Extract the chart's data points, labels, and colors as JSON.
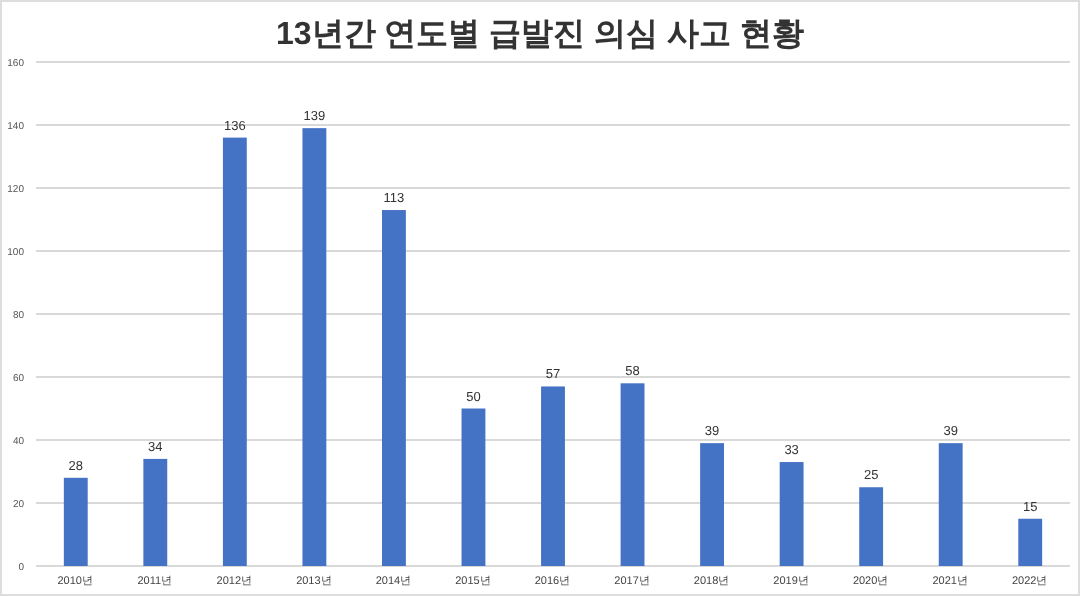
{
  "chart_data": {
    "type": "bar",
    "title": "13년간 연도별 급발진 의심 사고 현황",
    "categories": [
      "2010년",
      "2011년",
      "2012년",
      "2013년",
      "2014년",
      "2015년",
      "2016년",
      "2017년",
      "2018년",
      "2019년",
      "2020년",
      "2021년",
      "2022년"
    ],
    "values": [
      28,
      34,
      136,
      139,
      113,
      50,
      57,
      58,
      39,
      33,
      25,
      39,
      15
    ],
    "color": "#4472c4",
    "ylim": [
      0,
      160
    ],
    "yticks": [
      0,
      20,
      40,
      60,
      80,
      100,
      120,
      140,
      160
    ],
    "grid": "y",
    "data_labels": true
  }
}
